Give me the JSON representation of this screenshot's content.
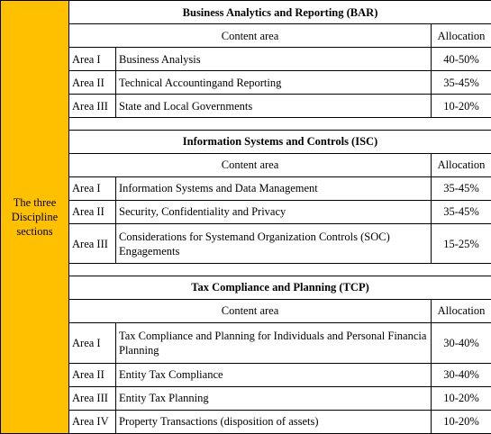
{
  "left_label": "The three Discipline sections",
  "sections": [
    {
      "title": "Business Analytics and Reporting (BAR)",
      "header": [
        "Content area",
        "Allocation"
      ],
      "rows": [
        [
          "Area I",
          "Business Analysis",
          "40-50%"
        ],
        [
          "Area II",
          "Technical Accountingand Reporting",
          "35-45%"
        ],
        [
          "Area III",
          "State and Local Governments",
          "10-20%"
        ]
      ]
    },
    {
      "title": "Information Systems and Controls (ISC)",
      "header": [
        "Content area",
        "Allocation"
      ],
      "rows": [
        [
          "Area I",
          "Information Systems and Data Management",
          "35-45%"
        ],
        [
          "Area II",
          "Security, Confidentiality and Privacy",
          "35-45%"
        ],
        [
          "Area III",
          "Considerations for Systemand Organization Controls (SOC) Engagements",
          "15-25%"
        ]
      ]
    },
    {
      "title": "Tax Compliance and Planning (TCP)",
      "header": [
        "Content area",
        "Allocation"
      ],
      "rows": [
        [
          "Area I",
          "Tax Compliance and Planning for Individuals and Personal Financia Planning",
          "30-40%"
        ],
        [
          "Area II",
          "Entity Tax Compliance",
          "30-40%"
        ],
        [
          "Area III",
          "Entity Tax Planning",
          "10-20%"
        ],
        [
          "Area IV",
          "Property Transactions (disposition of assets)",
          "10-20%"
        ]
      ]
    }
  ]
}
